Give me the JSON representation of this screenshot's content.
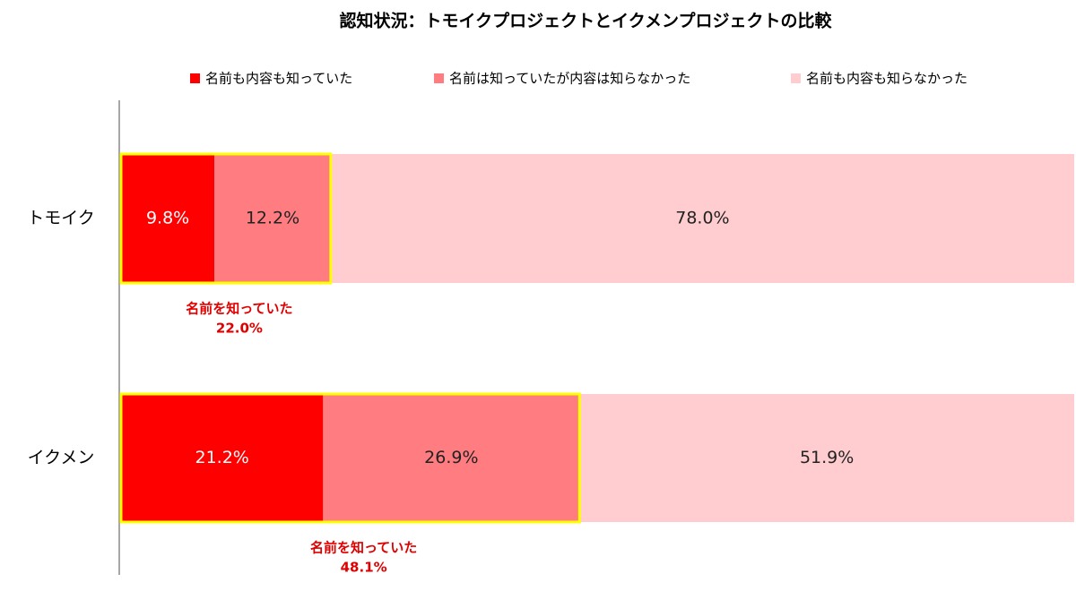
{
  "chart_data": {
    "type": "bar",
    "orientation": "horizontal",
    "stacked": true,
    "title": "認知状況：トモイクプロジェクトとイクメンプロジェクトの比較",
    "categories": [
      "トモイク",
      "イクメン"
    ],
    "series": [
      {
        "name": "名前も内容も知っていた",
        "color": "#ff0000",
        "values": [
          9.8,
          21.2
        ],
        "value_labels": [
          "9.8%",
          "21.2%"
        ]
      },
      {
        "name": "名前は知っていたが内容は知らなかった",
        "color": "#ff7c80",
        "values": [
          12.2,
          26.9
        ],
        "value_labels": [
          "12.2%",
          "26.9%"
        ]
      },
      {
        "name": "名前も内容も知らなかった",
        "color": "#ffccd0",
        "values": [
          78.0,
          51.9
        ],
        "value_labels": [
          "78.0%",
          "51.9%"
        ]
      }
    ],
    "xlim": [
      0,
      100
    ],
    "annotations": [
      {
        "text": "名前を知っていた",
        "value": 22.0,
        "value_label": "22.0%"
      },
      {
        "text": "名前を知っていた",
        "value": 48.1,
        "value_label": "48.1%"
      }
    ],
    "highlight_color": "#ffff00",
    "annotation_color": "#e00000",
    "legend": "top"
  }
}
